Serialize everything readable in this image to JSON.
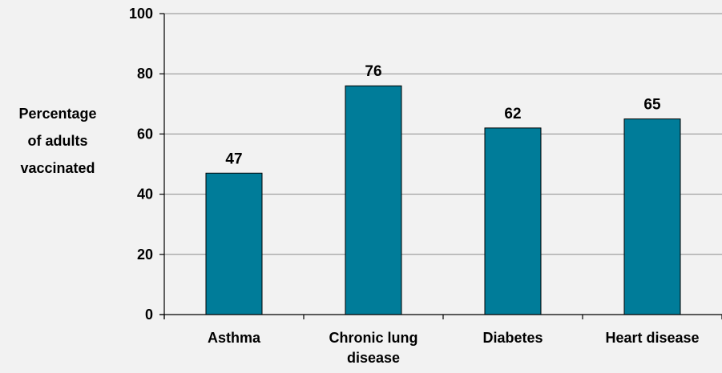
{
  "chart_data": {
    "type": "bar",
    "categories": [
      "Asthma",
      "Chronic lung disease",
      "Diabetes",
      "Heart disease"
    ],
    "values": [
      47,
      76,
      62,
      65
    ],
    "data_labels": [
      "47",
      "76",
      "62",
      "65"
    ],
    "title": "",
    "xlabel": "",
    "ylabel": "Percentage of adults vaccinated",
    "ylim": [
      0,
      100
    ],
    "yticks": [
      0,
      20,
      40,
      60,
      80,
      100
    ],
    "ytick_labels": [
      "0",
      "20",
      "40",
      "60",
      "80",
      "100"
    ],
    "grid": true,
    "colors": {
      "bar": "#007c99",
      "bar_edge": "#000000",
      "grid": "#8c8c8c",
      "background": "#f2f2f2"
    }
  }
}
